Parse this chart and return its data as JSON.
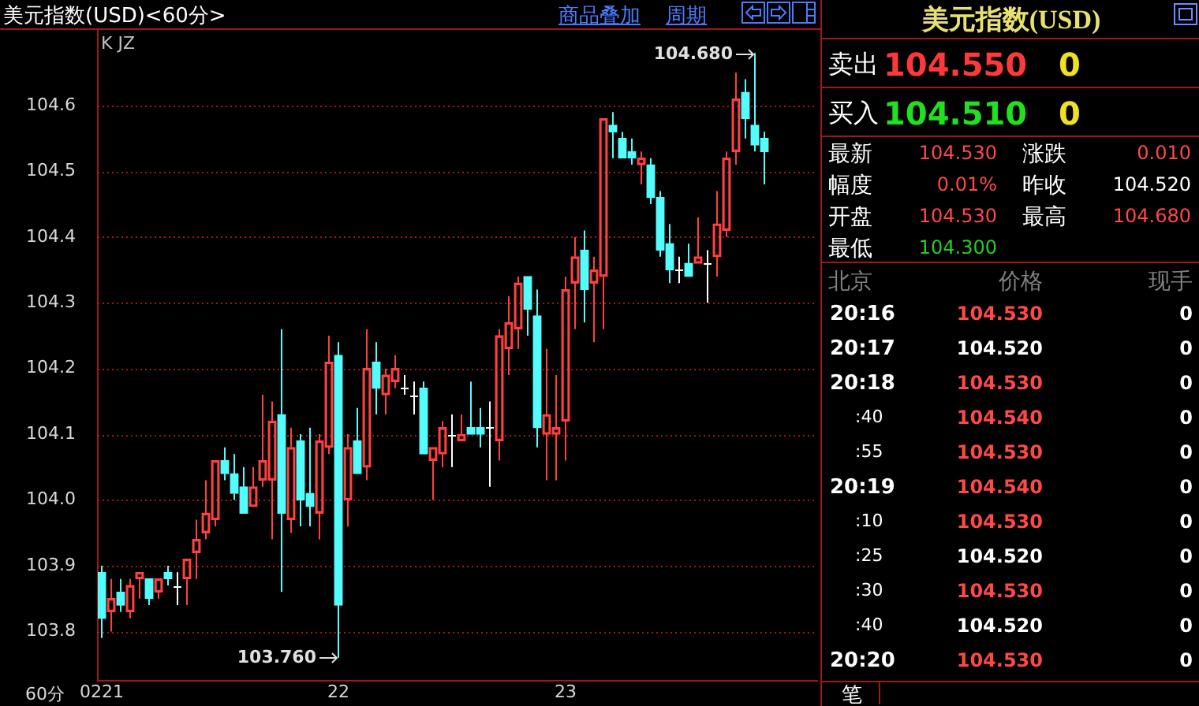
{
  "chart_data": [
    {
      "type": "candlestick",
      "title": "美元指数(USD)<60分>",
      "xlabel": "60分",
      "categories": [
        "0221",
        null,
        null,
        null,
        null,
        null,
        null,
        null,
        null,
        null,
        null,
        null,
        null,
        null,
        null,
        null,
        null,
        null,
        null,
        null,
        null,
        null,
        null,
        null,
        null,
        "22",
        null,
        null,
        null,
        null,
        null,
        null,
        null,
        null,
        null,
        null,
        null,
        null,
        null,
        null,
        null,
        null,
        null,
        null,
        null,
        null,
        null,
        null,
        null,
        "23",
        null,
        null,
        null,
        null,
        null,
        null,
        null,
        null,
        null,
        null,
        null,
        null,
        null,
        null,
        null,
        null,
        null,
        null,
        null,
        null,
        null
      ],
      "ohlc": [
        [
          103.89,
          103.9,
          103.79,
          103.82
        ],
        [
          103.83,
          103.88,
          103.8,
          103.85
        ],
        [
          103.86,
          103.88,
          103.83,
          103.84
        ],
        [
          103.83,
          103.88,
          103.82,
          103.87
        ],
        [
          103.88,
          103.89,
          103.85,
          103.89
        ],
        [
          103.88,
          103.88,
          103.84,
          103.85
        ],
        [
          103.86,
          103.88,
          103.85,
          103.88
        ],
        [
          103.89,
          103.9,
          103.87,
          103.88
        ],
        [
          103.87,
          103.89,
          103.84,
          103.87
        ],
        [
          103.88,
          103.91,
          103.84,
          103.91
        ],
        [
          103.92,
          103.97,
          103.88,
          103.94
        ],
        [
          103.95,
          104.03,
          103.94,
          103.98
        ],
        [
          103.97,
          104.06,
          103.96,
          104.06
        ],
        [
          104.06,
          104.08,
          104.03,
          104.04
        ],
        [
          104.04,
          104.07,
          104.0,
          104.01
        ],
        [
          104.02,
          104.05,
          103.98,
          103.98
        ],
        [
          103.99,
          104.05,
          103.99,
          104.02
        ],
        [
          104.03,
          104.16,
          104.02,
          104.06
        ],
        [
          104.03,
          104.15,
          103.94,
          104.12
        ],
        [
          104.13,
          104.26,
          103.86,
          103.98
        ],
        [
          103.97,
          104.11,
          103.95,
          104.08
        ],
        [
          104.09,
          104.1,
          103.96,
          104.0
        ],
        [
          104.01,
          104.11,
          103.96,
          103.99
        ],
        [
          103.98,
          104.1,
          103.94,
          104.09
        ],
        [
          104.08,
          104.25,
          104.07,
          104.21
        ],
        [
          104.22,
          104.24,
          103.76,
          103.84
        ],
        [
          104.0,
          104.1,
          103.96,
          104.08
        ],
        [
          104.09,
          104.14,
          104.04,
          104.04
        ],
        [
          104.05,
          104.26,
          104.03,
          104.2
        ],
        [
          104.21,
          104.24,
          104.13,
          104.17
        ],
        [
          104.16,
          104.2,
          104.13,
          104.19
        ],
        [
          104.18,
          104.22,
          104.17,
          104.2
        ],
        [
          104.17,
          104.19,
          104.16,
          104.17
        ],
        [
          104.16,
          104.18,
          104.13,
          104.16
        ],
        [
          104.17,
          104.18,
          104.07,
          104.07
        ],
        [
          104.06,
          104.08,
          104.0,
          104.08
        ],
        [
          104.07,
          104.12,
          104.05,
          104.11
        ],
        [
          104.1,
          104.13,
          104.05,
          104.1
        ],
        [
          104.09,
          104.13,
          104.09,
          104.1
        ],
        [
          104.11,
          104.18,
          104.1,
          104.1
        ],
        [
          104.11,
          104.14,
          104.08,
          104.1
        ],
        [
          104.11,
          104.15,
          104.02,
          104.11
        ],
        [
          104.09,
          104.26,
          104.06,
          104.25
        ],
        [
          104.23,
          104.31,
          104.19,
          104.27
        ],
        [
          104.26,
          104.34,
          104.23,
          104.33
        ],
        [
          104.34,
          104.34,
          104.25,
          104.29
        ],
        [
          104.28,
          104.32,
          104.08,
          104.11
        ],
        [
          104.1,
          104.23,
          104.03,
          104.13
        ],
        [
          104.1,
          104.19,
          104.03,
          104.11
        ],
        [
          104.12,
          104.34,
          104.06,
          104.32
        ],
        [
          104.33,
          104.4,
          104.26,
          104.37
        ],
        [
          104.38,
          104.41,
          104.27,
          104.32
        ],
        [
          104.33,
          104.37,
          104.24,
          104.35
        ],
        [
          104.34,
          104.58,
          104.26,
          104.58
        ],
        [
          104.57,
          104.59,
          104.52,
          104.56
        ],
        [
          104.55,
          104.56,
          104.52,
          104.52
        ],
        [
          104.53,
          104.55,
          104.51,
          104.52
        ],
        [
          104.51,
          104.53,
          104.48,
          104.52
        ],
        [
          104.51,
          104.52,
          104.45,
          104.46
        ],
        [
          104.46,
          104.47,
          104.37,
          104.38
        ],
        [
          104.39,
          104.42,
          104.33,
          104.35
        ],
        [
          104.35,
          104.37,
          104.33,
          104.35
        ],
        [
          104.36,
          104.39,
          104.34,
          104.34
        ],
        [
          104.36,
          104.43,
          104.36,
          104.37
        ],
        [
          104.36,
          104.38,
          104.3,
          104.36
        ],
        [
          104.37,
          104.47,
          104.34,
          104.42
        ],
        [
          104.41,
          104.53,
          104.4,
          104.52
        ],
        [
          104.53,
          104.65,
          104.51,
          104.61
        ],
        [
          104.62,
          104.64,
          104.55,
          104.58
        ],
        [
          104.57,
          104.68,
          104.53,
          104.54
        ],
        [
          104.55,
          104.56,
          104.48,
          104.53
        ]
      ],
      "ylim": [
        103.725,
        104.715
      ],
      "yticks": [
        103.8,
        103.9,
        {
          "value": 104,
          "label": "104.0"
        },
        104.1,
        104.2,
        104.3,
        104.4,
        104.5,
        104.6
      ],
      "grid": "y",
      "annotations": [
        "商品叠加",
        "周期",
        "K JZ",
        "104.680",
        "103.760"
      ]
    },
    {
      "type": "other",
      "title": "美元指数(USD)",
      "annotations": [
        "卖出",
        "104.550",
        "0",
        "买入",
        "104.510",
        "0",
        "最新",
        "104.530",
        "涨跌",
        "0.010",
        "幅度",
        "0.01%",
        "昨收",
        "104.520",
        "开盘",
        "104.530",
        "最高",
        "104.680",
        "最低",
        "104.300",
        "北京",
        "价格",
        "现手",
        "20:16",
        "104.530",
        "0",
        "20:17",
        "104.520",
        "0",
        "20:18",
        "104.530",
        "0",
        ":40",
        "104.540",
        "0",
        ":55",
        "104.530",
        "0",
        "20:19",
        "104.540",
        "0",
        ":10",
        "104.530",
        "0",
        ":25",
        "104.520",
        "0",
        ":30",
        "104.530",
        "0",
        ":40",
        "104.520",
        "0",
        "20:20",
        "104.530",
        "0",
        "笔"
      ]
    }
  ]
}
